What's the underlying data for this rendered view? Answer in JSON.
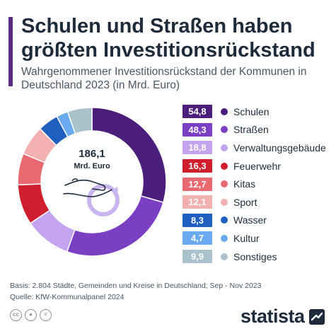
{
  "header": {
    "title": "Schulen und Straßen haben größten Investitionsrückstand",
    "subtitle": "Wahrgenommener Investitionsrückstand der Kommunen in Deutschland 2023 (in Mrd. Euro)"
  },
  "center": {
    "total": "186,1",
    "unit": "Mrd. Euro"
  },
  "chart_data": {
    "type": "pie",
    "subtype": "donut",
    "title": "Schulen und Straßen haben größten Investitionsrückstand",
    "subtitle": "Wahrgenommener Investitionsrückstand der Kommunen in Deutschland 2023 (in Mrd. Euro)",
    "total": 186.1,
    "legend_position": "right",
    "categories": [
      "Schulen",
      "Straßen",
      "Verwaltungsgebäude",
      "Feuerwehr",
      "Kitas",
      "Sport",
      "Wasser",
      "Kultur",
      "Sonstiges"
    ],
    "values": [
      54.8,
      48.3,
      18.8,
      16.3,
      12.7,
      12.1,
      8.3,
      4.7,
      9.9
    ],
    "value_labels": [
      "54,8",
      "48,3",
      "18,8",
      "16,3",
      "12,7",
      "12,1",
      "8,3",
      "4,7",
      "9,9"
    ],
    "colors": [
      "#4a1e7a",
      "#7b3fc4",
      "#c4a3ef",
      "#cf1f2e",
      "#e8696f",
      "#f3b0b0",
      "#1f5fbf",
      "#6aaaf0",
      "#a9c2cc"
    ]
  },
  "footer": {
    "basis": "Basis: 2.804 Städte, Gemeinden und Kreise in Deutschland; Sep - Nov 2023",
    "source": "Quelle: KfW-Kommunalpanel 2024"
  },
  "brand": {
    "name": "statista"
  },
  "icons": [
    "cc-icon",
    "by-icon",
    "nd-icon",
    "statista-logo-icon",
    "money-renew-icon"
  ]
}
